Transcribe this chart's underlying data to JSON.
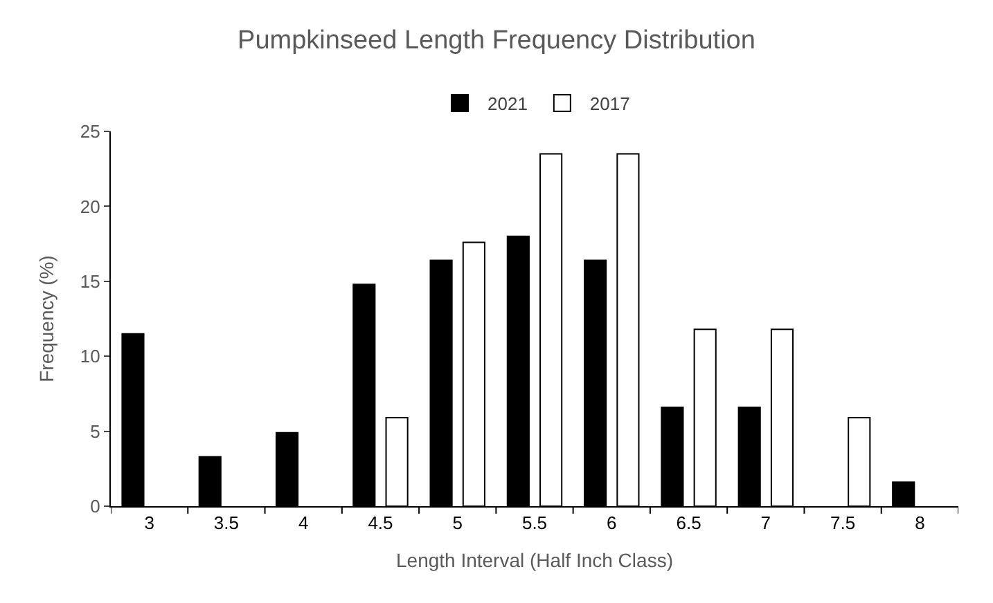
{
  "chart_data": {
    "type": "bar",
    "title": "Pumpkinseed Length Frequency Distribution",
    "xlabel": "Length Interval (Half Inch Class)",
    "ylabel": "Frequency (%)",
    "categories": [
      "3",
      "3.5",
      "4",
      "4.5",
      "5",
      "5.5",
      "6",
      "6.5",
      "7",
      "7.5",
      "8"
    ],
    "series": [
      {
        "name": "2021",
        "color": "#000000",
        "values": [
          11.5,
          3.3,
          4.9,
          14.8,
          16.4,
          18,
          16.4,
          6.6,
          6.6,
          null,
          1.6
        ]
      },
      {
        "name": "2017",
        "color": "#ffffff",
        "values": [
          null,
          null,
          null,
          5.9,
          17.6,
          23.5,
          23.5,
          11.8,
          11.8,
          5.9,
          null
        ]
      }
    ],
    "ylim": [
      0,
      25
    ],
    "yticks": [
      0,
      5,
      10,
      15,
      20,
      25
    ],
    "legend": "top"
  }
}
